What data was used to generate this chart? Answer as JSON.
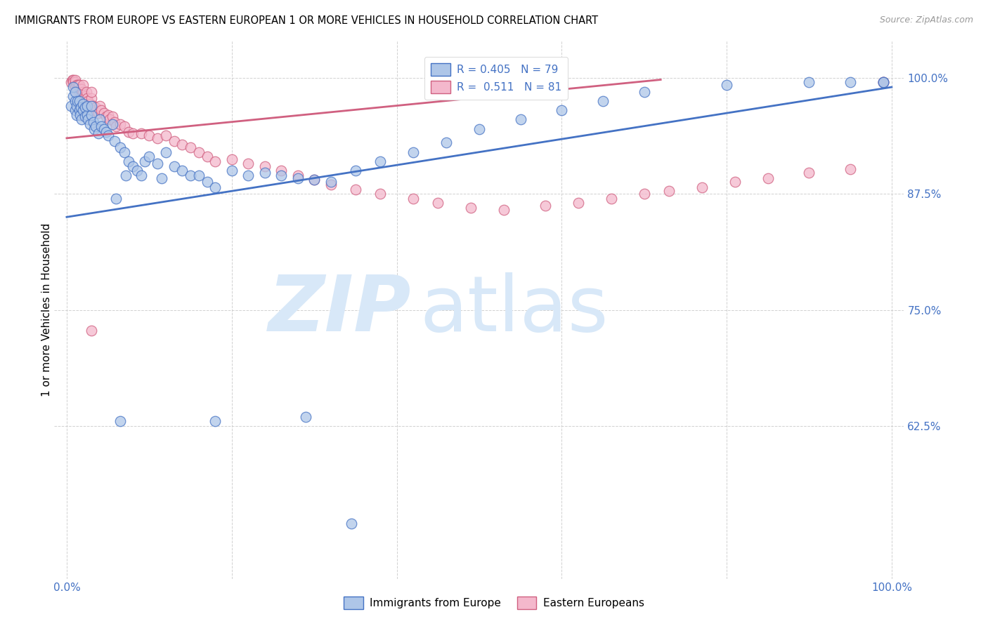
{
  "title": "IMMIGRANTS FROM EUROPE VS EASTERN EUROPEAN 1 OR MORE VEHICLES IN HOUSEHOLD CORRELATION CHART",
  "source": "Source: ZipAtlas.com",
  "ylabel": "1 or more Vehicles in Household",
  "blue_color": "#aec6e8",
  "blue_edge": "#4472c4",
  "pink_color": "#f4b8cc",
  "pink_edge": "#d06080",
  "trendline_blue": "#4472c4",
  "trendline_pink": "#d06080",
  "tick_color": "#4472c4",
  "watermark_color": "#d8e8f8",
  "blue_x": [
    0.005,
    0.008,
    0.008,
    0.01,
    0.01,
    0.01,
    0.012,
    0.012,
    0.013,
    0.015,
    0.015,
    0.016,
    0.017,
    0.018,
    0.02,
    0.02,
    0.022,
    0.022,
    0.025,
    0.025,
    0.026,
    0.028,
    0.03,
    0.03,
    0.032,
    0.033,
    0.035,
    0.038,
    0.04,
    0.042,
    0.045,
    0.048,
    0.05,
    0.055,
    0.058,
    0.06,
    0.065,
    0.07,
    0.072,
    0.075,
    0.08,
    0.085,
    0.09,
    0.095,
    0.1,
    0.11,
    0.115,
    0.12,
    0.13,
    0.14,
    0.15,
    0.16,
    0.17,
    0.18,
    0.2,
    0.22,
    0.24,
    0.26,
    0.28,
    0.3,
    0.32,
    0.35,
    0.38,
    0.42,
    0.46,
    0.5,
    0.55,
    0.6,
    0.65,
    0.7,
    0.8,
    0.9,
    0.95,
    0.99,
    0.99,
    0.065,
    0.18,
    0.29,
    0.345
  ],
  "blue_y": [
    0.97,
    0.98,
    0.99,
    0.965,
    0.975,
    0.985,
    0.96,
    0.97,
    0.975,
    0.965,
    0.975,
    0.96,
    0.968,
    0.955,
    0.965,
    0.972,
    0.958,
    0.968,
    0.96,
    0.97,
    0.955,
    0.95,
    0.96,
    0.97,
    0.952,
    0.945,
    0.948,
    0.94,
    0.955,
    0.948,
    0.945,
    0.942,
    0.938,
    0.95,
    0.932,
    0.87,
    0.925,
    0.92,
    0.895,
    0.91,
    0.905,
    0.9,
    0.895,
    0.91,
    0.915,
    0.908,
    0.892,
    0.92,
    0.905,
    0.9,
    0.895,
    0.895,
    0.888,
    0.882,
    0.9,
    0.895,
    0.898,
    0.895,
    0.892,
    0.89,
    0.888,
    0.9,
    0.91,
    0.92,
    0.93,
    0.945,
    0.955,
    0.965,
    0.975,
    0.985,
    0.992,
    0.995,
    0.995,
    0.995,
    0.995,
    0.63,
    0.63,
    0.635,
    0.52
  ],
  "pink_x": [
    0.005,
    0.007,
    0.008,
    0.008,
    0.009,
    0.01,
    0.01,
    0.01,
    0.012,
    0.012,
    0.013,
    0.014,
    0.015,
    0.015,
    0.016,
    0.017,
    0.018,
    0.018,
    0.02,
    0.02,
    0.022,
    0.023,
    0.024,
    0.025,
    0.026,
    0.028,
    0.03,
    0.03,
    0.032,
    0.033,
    0.035,
    0.038,
    0.04,
    0.042,
    0.045,
    0.048,
    0.05,
    0.052,
    0.055,
    0.058,
    0.06,
    0.065,
    0.07,
    0.075,
    0.08,
    0.09,
    0.1,
    0.11,
    0.12,
    0.13,
    0.14,
    0.15,
    0.16,
    0.17,
    0.18,
    0.2,
    0.22,
    0.24,
    0.26,
    0.28,
    0.3,
    0.32,
    0.35,
    0.38,
    0.42,
    0.45,
    0.49,
    0.53,
    0.58,
    0.62,
    0.66,
    0.7,
    0.73,
    0.77,
    0.81,
    0.85,
    0.9,
    0.95,
    0.99,
    0.99,
    0.03
  ],
  "pink_y": [
    0.995,
    0.998,
    0.998,
    0.995,
    0.992,
    0.995,
    0.99,
    0.998,
    0.992,
    0.985,
    0.988,
    0.992,
    0.985,
    0.992,
    0.988,
    0.985,
    0.988,
    0.982,
    0.985,
    0.992,
    0.978,
    0.98,
    0.985,
    0.978,
    0.975,
    0.972,
    0.978,
    0.985,
    0.97,
    0.965,
    0.968,
    0.962,
    0.97,
    0.965,
    0.962,
    0.958,
    0.96,
    0.955,
    0.958,
    0.952,
    0.948,
    0.95,
    0.948,
    0.942,
    0.94,
    0.94,
    0.938,
    0.935,
    0.938,
    0.932,
    0.928,
    0.925,
    0.92,
    0.915,
    0.91,
    0.912,
    0.908,
    0.905,
    0.9,
    0.895,
    0.89,
    0.885,
    0.88,
    0.875,
    0.87,
    0.865,
    0.86,
    0.858,
    0.862,
    0.865,
    0.87,
    0.875,
    0.878,
    0.882,
    0.888,
    0.892,
    0.898,
    0.902,
    0.995,
    0.995,
    0.728
  ],
  "blue_trendline": [
    [
      0.0,
      1.0
    ],
    [
      0.85,
      0.99
    ]
  ],
  "pink_trendline": [
    [
      0.0,
      0.72
    ],
    [
      0.935,
      0.998
    ]
  ]
}
